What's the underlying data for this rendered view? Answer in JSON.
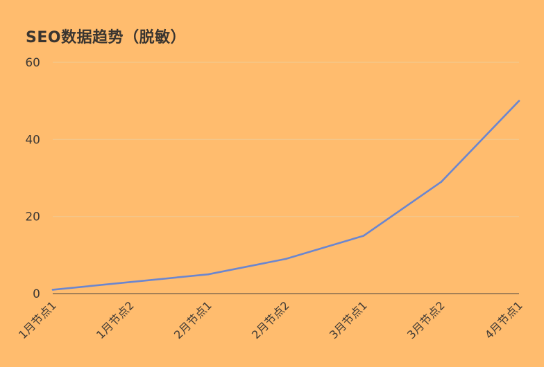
{
  "chart_data": {
    "type": "line",
    "title": "SEO数据趋势（脱敏）",
    "xlabel": "",
    "ylabel": "",
    "categories": [
      "1月节点1",
      "1月节点2",
      "2月节点1",
      "2月节点2",
      "3月节点1",
      "3月节点2",
      "4月节点1"
    ],
    "series": [
      {
        "values": [
          1,
          3,
          5,
          9,
          15,
          29,
          50
        ]
      }
    ],
    "ylim": [
      0,
      60
    ],
    "yticks": [
      "0",
      "20",
      "40",
      "60"
    ],
    "grid": true,
    "legend": "none",
    "colors": {
      "background": "#FFBC6E",
      "line": "#6B86CF",
      "grid": "#F2C88F",
      "axis": "#4a4540",
      "text": "#3f3a35"
    }
  }
}
